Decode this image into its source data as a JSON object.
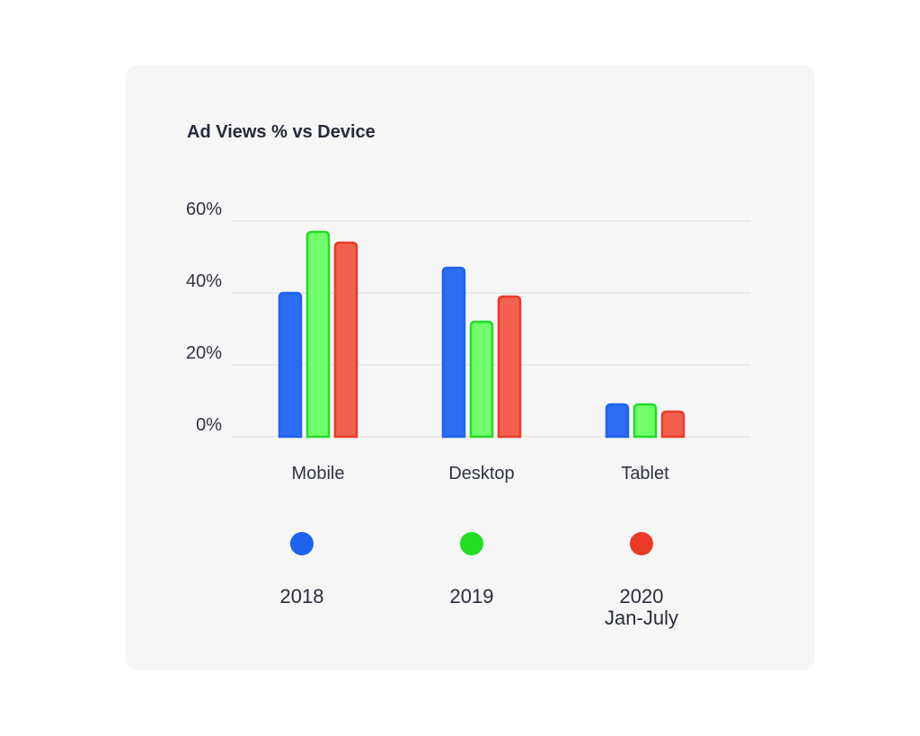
{
  "chart_data": {
    "type": "bar",
    "title": "Ad Views % vs Device",
    "categories": [
      "Mobile",
      "Desktop",
      "Tablet"
    ],
    "series": [
      {
        "name": "2018",
        "label_lines": [
          "2018"
        ],
        "color": "#1d63f0",
        "fill": "#2f6cf4",
        "values": [
          40,
          47,
          9
        ]
      },
      {
        "name": "2019",
        "label_lines": [
          "2019"
        ],
        "color": "#22dd22",
        "fill": "#70ff6a",
        "values": [
          57,
          32,
          9
        ]
      },
      {
        "name": "2020 Jan-July",
        "label_lines": [
          "2020",
          "Jan-July"
        ],
        "color": "#ec3a28",
        "fill": "#f2614f",
        "values": [
          54,
          39,
          7
        ]
      }
    ],
    "yticks": [
      0,
      20,
      40,
      60
    ],
    "ytick_labels": [
      "0%",
      "20%",
      "40%",
      "60%"
    ],
    "ylim": [
      0,
      60
    ],
    "grid": true,
    "legend_position": "bottom"
  }
}
